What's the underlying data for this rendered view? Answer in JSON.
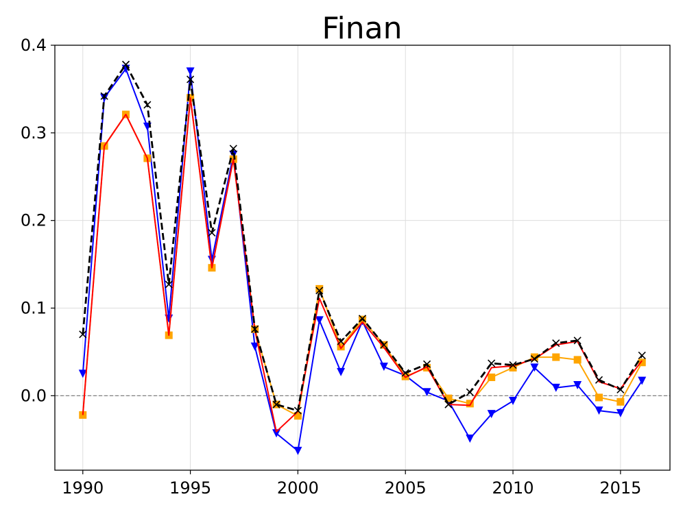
{
  "chart_data": {
    "type": "line",
    "title": "Finan",
    "xlabel": "",
    "ylabel": "",
    "xlim": [
      1988.7,
      2017.3
    ],
    "ylim": [
      -0.085,
      0.4
    ],
    "xticks": [
      1990,
      1995,
      2000,
      2005,
      2010,
      2015
    ],
    "yticks": [
      0.0,
      0.1,
      0.2,
      0.3,
      0.4
    ],
    "ytick_labels": [
      "0.0",
      "0.1",
      "0.2",
      "0.3",
      "0.4"
    ],
    "grid": true,
    "reference_line": 0.0,
    "x": [
      1990,
      1991,
      1992,
      1993,
      1994,
      1995,
      1996,
      1997,
      1998,
      1999,
      2000,
      2001,
      2002,
      2003,
      2004,
      2005,
      2006,
      2007,
      2008,
      2009,
      2010,
      2011,
      2012,
      2013,
      2014,
      2015,
      2016
    ],
    "series": [
      {
        "color": "#0000ff",
        "marker": "triangle-down",
        "dashed": false,
        "values": [
          0.025,
          0.34,
          0.373,
          0.307,
          0.088,
          0.37,
          0.155,
          0.275,
          0.056,
          -0.043,
          -0.063,
          0.086,
          0.027,
          0.085,
          0.033,
          0.023,
          0.004,
          -0.006,
          -0.049,
          -0.021,
          -0.006,
          0.032,
          0.009,
          0.012,
          -0.017,
          -0.02,
          0.017
        ]
      },
      {
        "color": "#ffa500",
        "marker": "square",
        "dashed": false,
        "values": [
          -0.022,
          0.285,
          0.321,
          0.271,
          0.069,
          0.34,
          0.146,
          0.27,
          0.076,
          -0.01,
          -0.023,
          0.122,
          0.056,
          0.087,
          0.058,
          0.022,
          0.032,
          -0.003,
          -0.009,
          0.021,
          0.032,
          0.044,
          0.044,
          0.041,
          -0.002,
          -0.007,
          0.038
        ]
      },
      {
        "color": "#ff0000",
        "marker": "none",
        "dashed": false,
        "values": [
          -0.022,
          0.285,
          0.321,
          0.271,
          0.069,
          0.34,
          0.146,
          0.27,
          0.075,
          -0.041,
          -0.018,
          0.111,
          0.054,
          0.084,
          0.055,
          0.021,
          0.033,
          -0.01,
          -0.011,
          0.032,
          0.034,
          0.042,
          0.058,
          0.062,
          0.016,
          0.008,
          0.04
        ]
      },
      {
        "color": "#000000",
        "marker": "x",
        "dashed": true,
        "values": [
          0.07,
          0.342,
          0.378,
          0.332,
          0.127,
          0.361,
          0.186,
          0.282,
          0.076,
          -0.01,
          -0.017,
          0.12,
          0.062,
          0.088,
          0.058,
          0.026,
          0.036,
          -0.01,
          0.004,
          0.037,
          0.035,
          0.042,
          0.06,
          0.063,
          0.018,
          0.007,
          0.046
        ]
      }
    ]
  }
}
